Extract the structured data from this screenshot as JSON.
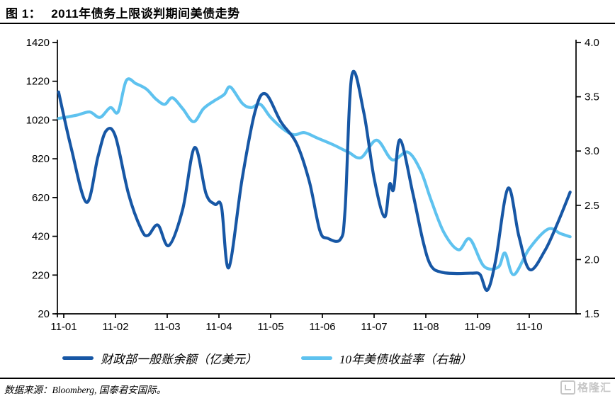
{
  "header": {
    "figure_label": "图 1：",
    "title": "2011年债务上限谈判期间美债走势"
  },
  "footer": {
    "source": "数据来源：Bloomberg, 国泰君安国际。",
    "logo_text": "格隆汇"
  },
  "colors": {
    "tga_line": "#1757A5",
    "yield_line": "#5EC2EF",
    "axis": "#000000",
    "title_rule": "#000000",
    "logo_gray": "#c6c6c6"
  },
  "chart_data": {
    "type": "line",
    "title": "2011年债务上限谈判期间美债走势",
    "grid": false,
    "legend_position": "bottom",
    "x_axis": {
      "tick_labels": [
        "11-01",
        "11-02",
        "11-03",
        "11-04",
        "11-05",
        "11-06",
        "11-07",
        "11-08",
        "11-09",
        "11-10"
      ]
    },
    "left_axis": {
      "min": 20,
      "max": 1420,
      "ticks": [
        1420,
        1220,
        1020,
        820,
        620,
        420,
        220,
        20
      ]
    },
    "right_axis": {
      "min": 1.5,
      "max": 4.0,
      "tick_labels": [
        "4.0",
        "3.5",
        "3.0",
        "2.5",
        "2.0",
        "1.5"
      ],
      "ticks": [
        4.0,
        3.5,
        3.0,
        2.5,
        2.0,
        1.5
      ]
    },
    "series": [
      {
        "name": "财政部一般账余额（亿美元）",
        "axis": "left",
        "color": "#1757A5",
        "points": [
          [
            -0.1,
            1165
          ],
          [
            0.14,
            880
          ],
          [
            0.44,
            595
          ],
          [
            0.66,
            830
          ],
          [
            0.82,
            965
          ],
          [
            1.0,
            935
          ],
          [
            1.25,
            640
          ],
          [
            1.5,
            455
          ],
          [
            1.63,
            425
          ],
          [
            1.82,
            478
          ],
          [
            2.03,
            372
          ],
          [
            2.3,
            560
          ],
          [
            2.53,
            878
          ],
          [
            2.75,
            640
          ],
          [
            2.92,
            585
          ],
          [
            3.05,
            572
          ],
          [
            3.19,
            258
          ],
          [
            3.45,
            720
          ],
          [
            3.7,
            1065
          ],
          [
            3.9,
            1155
          ],
          [
            4.2,
            1010
          ],
          [
            4.5,
            900
          ],
          [
            4.75,
            700
          ],
          [
            4.95,
            450
          ],
          [
            5.1,
            410
          ],
          [
            5.35,
            405
          ],
          [
            5.44,
            560
          ],
          [
            5.57,
            1250
          ],
          [
            5.8,
            1060
          ],
          [
            6.0,
            720
          ],
          [
            6.2,
            520
          ],
          [
            6.3,
            688
          ],
          [
            6.38,
            665
          ],
          [
            6.5,
            918
          ],
          [
            6.75,
            640
          ],
          [
            6.95,
            390
          ],
          [
            7.1,
            268
          ],
          [
            7.3,
            235
          ],
          [
            7.6,
            228
          ],
          [
            7.9,
            230
          ],
          [
            8.05,
            222
          ],
          [
            8.19,
            142
          ],
          [
            8.35,
            295
          ],
          [
            8.59,
            668
          ],
          [
            8.8,
            420
          ],
          [
            9.01,
            248
          ],
          [
            9.3,
            345
          ],
          [
            9.55,
            490
          ],
          [
            9.79,
            648
          ]
        ]
      },
      {
        "name": "10年美债收益率（右轴）",
        "axis": "right",
        "color": "#5EC2EF",
        "points": [
          [
            -0.1,
            3.3
          ],
          [
            0.25,
            3.33
          ],
          [
            0.5,
            3.36
          ],
          [
            0.7,
            3.31
          ],
          [
            0.9,
            3.4
          ],
          [
            1.05,
            3.36
          ],
          [
            1.21,
            3.65
          ],
          [
            1.4,
            3.62
          ],
          [
            1.6,
            3.57
          ],
          [
            1.78,
            3.48
          ],
          [
            1.95,
            3.43
          ],
          [
            2.1,
            3.49
          ],
          [
            2.3,
            3.39
          ],
          [
            2.51,
            3.27
          ],
          [
            2.7,
            3.39
          ],
          [
            2.9,
            3.46
          ],
          [
            3.1,
            3.52
          ],
          [
            3.22,
            3.59
          ],
          [
            3.45,
            3.44
          ],
          [
            3.62,
            3.4
          ],
          [
            3.8,
            3.43
          ],
          [
            4.0,
            3.31
          ],
          [
            4.25,
            3.2
          ],
          [
            4.45,
            3.15
          ],
          [
            4.65,
            3.17
          ],
          [
            4.9,
            3.12
          ],
          [
            5.2,
            3.06
          ],
          [
            5.5,
            2.99
          ],
          [
            5.75,
            2.94
          ],
          [
            6.05,
            3.1
          ],
          [
            6.35,
            2.92
          ],
          [
            6.65,
            2.99
          ],
          [
            6.9,
            2.82
          ],
          [
            7.1,
            2.55
          ],
          [
            7.35,
            2.25
          ],
          [
            7.63,
            2.09
          ],
          [
            7.85,
            2.19
          ],
          [
            8.12,
            1.94
          ],
          [
            8.4,
            1.93
          ],
          [
            8.53,
            2.06
          ],
          [
            8.7,
            1.86
          ],
          [
            9.0,
            2.1
          ],
          [
            9.36,
            2.28
          ],
          [
            9.6,
            2.24
          ],
          [
            9.79,
            2.21
          ]
        ]
      }
    ]
  }
}
